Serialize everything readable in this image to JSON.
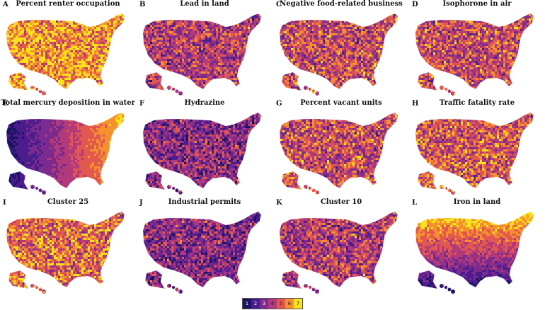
{
  "panels": [
    {
      "letter": "A",
      "title": "Percent renter occupation",
      "pattern": "mix",
      "bias": 6.0
    },
    {
      "letter": "B",
      "title": "Lead in land",
      "pattern": "mix",
      "bias": 4.0
    },
    {
      "letter": "C",
      "title": "Negative food-related business",
      "pattern": "mix",
      "bias": 4.5
    },
    {
      "letter": "D",
      "title": "Isophorone in air",
      "pattern": "mix",
      "bias": 4.5
    },
    {
      "letter": "E",
      "title": "Total mercury deposition in water",
      "pattern": "west-east",
      "bias": 4.0
    },
    {
      "letter": "F",
      "title": "Hydrazine",
      "pattern": "mix",
      "bias": 3.2
    },
    {
      "letter": "G",
      "title": "Percent vacant units",
      "pattern": "mix",
      "bias": 4.5
    },
    {
      "letter": "H",
      "title": "Traffic fatality rate",
      "pattern": "mix",
      "bias": 4.8
    },
    {
      "letter": "I",
      "title": "Cluster 25",
      "pattern": "mix",
      "bias": 5.2
    },
    {
      "letter": "J",
      "title": "Industrial permits",
      "pattern": "mix",
      "bias": 3.2
    },
    {
      "letter": "K",
      "title": "Cluster 10",
      "pattern": "mix",
      "bias": 4.0
    },
    {
      "letter": "L",
      "title": "Iron in land",
      "pattern": "north-south",
      "bias": 4.5
    }
  ],
  "legend": {
    "labels": [
      "1",
      "2",
      "3",
      "4",
      "5",
      "6",
      "7"
    ],
    "colors": [
      "#1a1462",
      "#4a1c8c",
      "#7b2a8e",
      "#b23a7a",
      "#e0584f",
      "#f6902f",
      "#f8e21a"
    ]
  }
}
